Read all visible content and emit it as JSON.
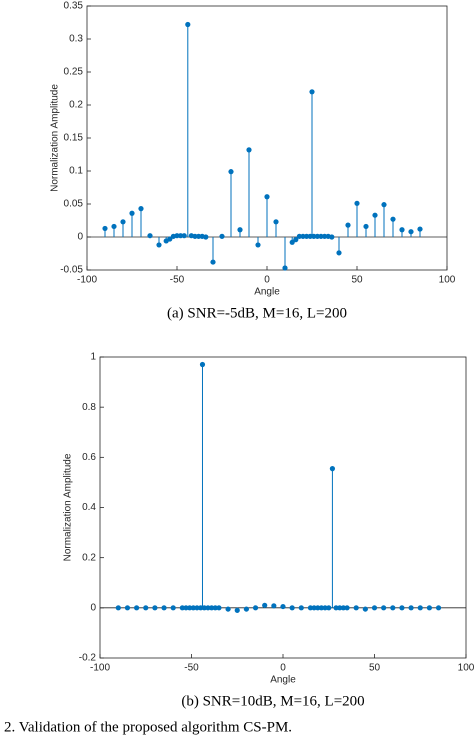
{
  "chart_data": [
    {
      "type": "stem",
      "xlabel": "Angle",
      "ylabel": "Normalization Amplitude",
      "caption": "(a) SNR=-5dB, M=16, L=200",
      "color": "#0072bd",
      "xlim": [
        -100,
        100
      ],
      "xticks": [
        -100,
        -50,
        0,
        50,
        100
      ],
      "ylim": [
        -0.05,
        0.35
      ],
      "yticks": [
        -0.05,
        0,
        0.05,
        0.1,
        0.15,
        0.2,
        0.25,
        0.3,
        0.35
      ],
      "x": [
        -90,
        -85,
        -80,
        -75,
        -70,
        -65,
        -60,
        -56,
        -54,
        -52,
        -50,
        -48,
        -46,
        -44,
        -42,
        -40,
        -38,
        -36,
        -34,
        -30,
        -25,
        -20,
        -15,
        -10,
        -5,
        0,
        5,
        10,
        14,
        16,
        18,
        20,
        22,
        24,
        25,
        26,
        28,
        30,
        32,
        34,
        36,
        40,
        45,
        50,
        55,
        60,
        65,
        70,
        75,
        80,
        85
      ],
      "values": [
        0.013,
        0.016,
        0.023,
        0.036,
        0.043,
        0.002,
        -0.012,
        -0.006,
        -0.003,
        0.001,
        0.002,
        0.002,
        0.002,
        0.322,
        0.002,
        0.001,
        0.001,
        0.001,
        0,
        -0.038,
        0.001,
        0.099,
        0.011,
        0.132,
        -0.012,
        0.061,
        0.023,
        -0.047,
        -0.008,
        -0.004,
        0.001,
        0.001,
        0.001,
        0.001,
        0.22,
        0.001,
        0.001,
        0.001,
        0.001,
        0.001,
        0,
        -0.024,
        0.018,
        0.051,
        0.016,
        0.033,
        0.049,
        0.027,
        0.011,
        0.008,
        0.012
      ]
    },
    {
      "type": "stem",
      "xlabel": "Angle",
      "ylabel": "Normalization Amplitude",
      "caption": "(b) SNR=10dB, M=16, L=200",
      "color": "#0072bd",
      "xlim": [
        -100,
        100
      ],
      "xticks": [
        -100,
        -50,
        0,
        50,
        100
      ],
      "ylim": [
        -0.2,
        1
      ],
      "yticks": [
        -0.2,
        0,
        0.2,
        0.4,
        0.6,
        0.8,
        1
      ],
      "x": [
        -90,
        -85,
        -80,
        -75,
        -70,
        -65,
        -60,
        -55,
        -53,
        -51,
        -49,
        -47,
        -45,
        -44,
        -43,
        -41,
        -39,
        -37,
        -35,
        -30,
        -25,
        -20,
        -15,
        -10,
        -5,
        0,
        5,
        10,
        15,
        17,
        19,
        21,
        23,
        25,
        27,
        29,
        31,
        33,
        35,
        40,
        45,
        50,
        55,
        60,
        65,
        70,
        75,
        80,
        85
      ],
      "values": [
        0,
        0,
        0,
        0,
        0,
        0,
        0,
        0,
        0,
        0,
        0,
        0,
        0,
        0.97,
        0,
        0,
        0,
        0,
        0,
        -0.005,
        -0.01,
        -0.005,
        0,
        0.01,
        0.008,
        0.005,
        0,
        0,
        0,
        0,
        0,
        0,
        0,
        0,
        0.555,
        0,
        0,
        0,
        0,
        0,
        -0.005,
        0,
        0,
        0,
        0,
        0,
        0,
        0,
        0
      ]
    }
  ],
  "figure_caption": "2. Validation of the proposed algorithm CS-PM."
}
